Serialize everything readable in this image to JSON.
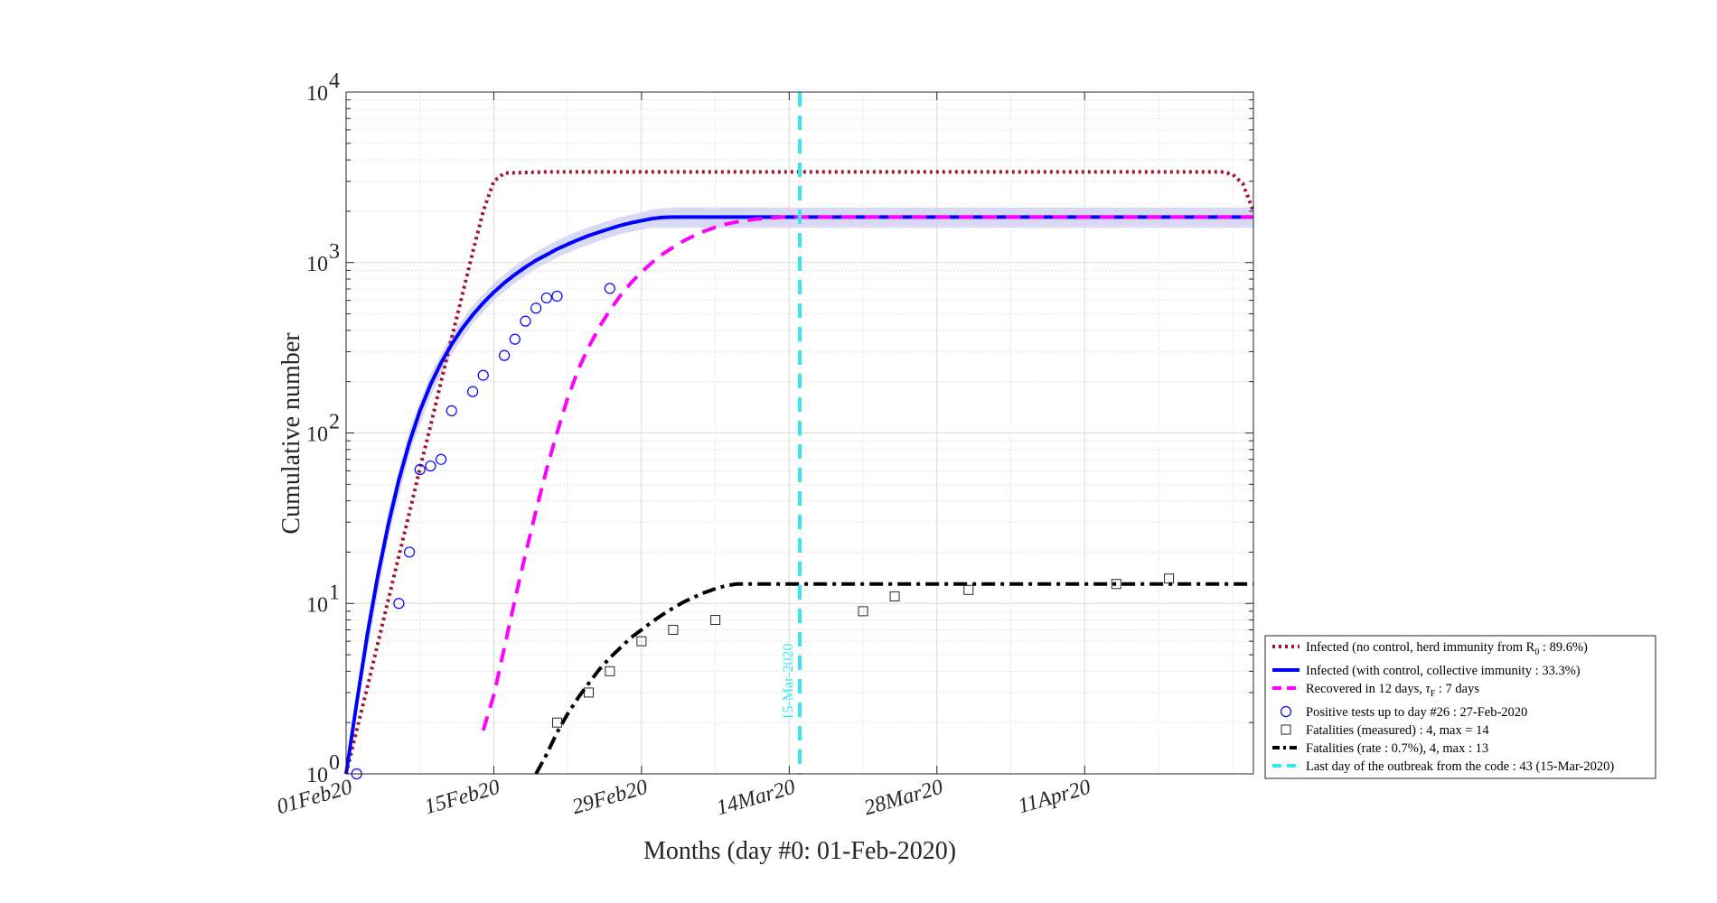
{
  "chart_data": {
    "type": "line",
    "title": "",
    "xlabel": "Months (day #0: 01-Feb-2020)",
    "ylabel": "Cumulative number",
    "yscale": "log",
    "xlim": [
      "2020-02-01",
      "2020-04-27"
    ],
    "ylim": [
      1,
      10000
    ],
    "grid": true,
    "minor_grid": true,
    "legend_position": "lower-right, outside the axes",
    "x_ticks": [
      {
        "date": "2020-02-01",
        "label": "01Feb20"
      },
      {
        "date": "2020-02-15",
        "label": "15Feb20"
      },
      {
        "date": "2020-02-29",
        "label": "29Feb20"
      },
      {
        "date": "2020-03-14",
        "label": "14Mar20"
      },
      {
        "date": "2020-03-28",
        "label": "28Mar20"
      },
      {
        "date": "2020-04-11",
        "label": "11Apr20"
      }
    ],
    "y_ticks": [
      {
        "value": 1,
        "base": "10",
        "exp": "0"
      },
      {
        "value": 10,
        "base": "10",
        "exp": "1"
      },
      {
        "value": 100,
        "base": "10",
        "exp": "2"
      },
      {
        "value": 1000,
        "base": "10",
        "exp": "3"
      },
      {
        "value": 10000,
        "base": "10",
        "exp": "4"
      }
    ],
    "series": [
      {
        "name": "Infected (no control, herd immunity from R",
        "name_sub": "0",
        "name_tail": " : 89.6%)",
        "style": "dotted",
        "color": "#a2142f",
        "points": [
          [
            "2020-02-01",
            1
          ],
          [
            "2020-02-02",
            1.8
          ],
          [
            "2020-02-03",
            3.2
          ],
          [
            "2020-02-04",
            5.8
          ],
          [
            "2020-02-05",
            10.5
          ],
          [
            "2020-02-06",
            19
          ],
          [
            "2020-02-07",
            34
          ],
          [
            "2020-02-08",
            62
          ],
          [
            "2020-02-09",
            110
          ],
          [
            "2020-02-10",
            200
          ],
          [
            "2020-02-11",
            360
          ],
          [
            "2020-02-12",
            640
          ],
          [
            "2020-02-13",
            1150
          ],
          [
            "2020-02-14",
            2000
          ],
          [
            "2020-02-15",
            3000
          ],
          [
            "2020-02-16",
            3350
          ],
          [
            "2020-02-20",
            3400
          ],
          [
            "2020-04-24",
            3400
          ],
          [
            "2020-04-25",
            3300
          ],
          [
            "2020-04-26",
            2900
          ],
          [
            "2020-04-27",
            2000
          ]
        ]
      },
      {
        "name": "Infected (with control, collective immunity : 33.3%)",
        "style": "solid",
        "color": "#0000ff",
        "points": [
          [
            "2020-02-01",
            1
          ],
          [
            "2020-02-02",
            2.6
          ],
          [
            "2020-02-03",
            6.5
          ],
          [
            "2020-02-04",
            14.5
          ],
          [
            "2020-02-05",
            29
          ],
          [
            "2020-02-06",
            53
          ],
          [
            "2020-02-07",
            88
          ],
          [
            "2020-02-08",
            135
          ],
          [
            "2020-02-09",
            192
          ],
          [
            "2020-02-10",
            258
          ],
          [
            "2020-02-11",
            331
          ],
          [
            "2020-02-12",
            410
          ],
          [
            "2020-02-13",
            493
          ],
          [
            "2020-02-14",
            580
          ],
          [
            "2020-02-15",
            670
          ],
          [
            "2020-02-16",
            760
          ],
          [
            "2020-02-17",
            850
          ],
          [
            "2020-02-18",
            940
          ],
          [
            "2020-02-19",
            1030
          ],
          [
            "2020-02-20",
            1110
          ],
          [
            "2020-02-21",
            1200
          ],
          [
            "2020-02-22",
            1280
          ],
          [
            "2020-02-23",
            1360
          ],
          [
            "2020-02-24",
            1440
          ],
          [
            "2020-02-25",
            1510
          ],
          [
            "2020-02-26",
            1580
          ],
          [
            "2020-02-27",
            1650
          ],
          [
            "2020-02-28",
            1710
          ],
          [
            "2020-02-29",
            1760
          ],
          [
            "2020-03-01",
            1810
          ],
          [
            "2020-03-02",
            1840
          ],
          [
            "2020-03-03",
            1850
          ],
          [
            "2020-04-27",
            1850
          ]
        ],
        "band_low": [
          [
            "2020-02-01",
            1
          ],
          [
            "2020-02-03",
            5.2
          ],
          [
            "2020-02-05",
            24
          ],
          [
            "2020-02-07",
            75
          ],
          [
            "2020-02-09",
            165
          ],
          [
            "2020-02-11",
            290
          ],
          [
            "2020-02-13",
            440
          ],
          [
            "2020-02-15",
            600
          ],
          [
            "2020-02-17",
            760
          ],
          [
            "2020-02-19",
            920
          ],
          [
            "2020-02-21",
            1070
          ],
          [
            "2020-02-23",
            1210
          ],
          [
            "2020-02-25",
            1340
          ],
          [
            "2020-02-27",
            1470
          ],
          [
            "2020-02-29",
            1560
          ],
          [
            "2020-03-01",
            1600
          ],
          [
            "2020-03-03",
            1600
          ],
          [
            "2020-04-27",
            1600
          ]
        ],
        "band_high": [
          [
            "2020-02-01",
            1
          ],
          [
            "2020-02-03",
            7.8
          ],
          [
            "2020-02-05",
            35
          ],
          [
            "2020-02-07",
            104
          ],
          [
            "2020-02-09",
            222
          ],
          [
            "2020-02-11",
            378
          ],
          [
            "2020-02-13",
            560
          ],
          [
            "2020-02-15",
            755
          ],
          [
            "2020-02-17",
            955
          ],
          [
            "2020-02-19",
            1155
          ],
          [
            "2020-02-21",
            1350
          ],
          [
            "2020-02-23",
            1530
          ],
          [
            "2020-02-25",
            1690
          ],
          [
            "2020-02-27",
            1850
          ],
          [
            "2020-02-29",
            1970
          ],
          [
            "2020-03-01",
            2050
          ],
          [
            "2020-03-03",
            2100
          ],
          [
            "2020-04-27",
            2100
          ]
        ]
      },
      {
        "name": "Recovered in 12 days, ",
        "name_tau": "τ",
        "name_sub": "F",
        "name_tail": " : 7 days",
        "style": "dashed",
        "color": "#ff00ff",
        "points": [
          [
            "2020-02-14",
            1.8
          ],
          [
            "2020-02-15",
            2.9
          ],
          [
            "2020-02-16",
            5.5
          ],
          [
            "2020-02-17",
            10.5
          ],
          [
            "2020-02-18",
            19.5
          ],
          [
            "2020-02-19",
            35
          ],
          [
            "2020-02-20",
            61
          ],
          [
            "2020-02-21",
            101
          ],
          [
            "2020-02-22",
            160
          ],
          [
            "2020-02-23",
            235
          ],
          [
            "2020-02-24",
            320
          ],
          [
            "2020-02-25",
            418
          ],
          [
            "2020-02-26",
            525
          ],
          [
            "2020-02-27",
            640
          ],
          [
            "2020-02-28",
            760
          ],
          [
            "2020-02-29",
            880
          ],
          [
            "2020-03-01",
            1000
          ],
          [
            "2020-03-02",
            1120
          ],
          [
            "2020-03-03",
            1230
          ],
          [
            "2020-03-04",
            1340
          ],
          [
            "2020-03-05",
            1440
          ],
          [
            "2020-03-06",
            1530
          ],
          [
            "2020-03-07",
            1610
          ],
          [
            "2020-03-08",
            1680
          ],
          [
            "2020-03-09",
            1730
          ],
          [
            "2020-03-10",
            1770
          ],
          [
            "2020-03-11",
            1800
          ],
          [
            "2020-03-12",
            1820
          ],
          [
            "2020-03-13",
            1840
          ],
          [
            "2020-03-14",
            1850
          ],
          [
            "2020-04-27",
            1850
          ]
        ]
      },
      {
        "name": "Positive tests up to day #26 : 27-Feb-2020",
        "style": "circle-markers",
        "color": "#0000ff",
        "points": [
          [
            "2020-02-02",
            1
          ],
          [
            "2020-02-06",
            10
          ],
          [
            "2020-02-07",
            20
          ],
          [
            "2020-02-08",
            61
          ],
          [
            "2020-02-09",
            64
          ],
          [
            "2020-02-10",
            70
          ],
          [
            "2020-02-11",
            135
          ],
          [
            "2020-02-13",
            175
          ],
          [
            "2020-02-14",
            218
          ],
          [
            "2020-02-16",
            285
          ],
          [
            "2020-02-17",
            355
          ],
          [
            "2020-02-18",
            453
          ],
          [
            "2020-02-19",
            540
          ],
          [
            "2020-02-20",
            620
          ],
          [
            "2020-02-21",
            635
          ],
          [
            "2020-02-26",
            705
          ]
        ]
      },
      {
        "name": "Fatalities (measured) : 4, max = 14",
        "style": "square-markers",
        "color": "#000000",
        "points": [
          [
            "2020-02-21",
            2
          ],
          [
            "2020-02-24",
            3
          ],
          [
            "2020-02-26",
            4
          ],
          [
            "2020-02-29",
            6
          ],
          [
            "2020-03-03",
            7
          ],
          [
            "2020-03-07",
            8
          ],
          [
            "2020-03-21",
            9
          ],
          [
            "2020-03-24",
            11
          ],
          [
            "2020-03-31",
            12
          ],
          [
            "2020-04-14",
            13
          ],
          [
            "2020-04-19",
            14
          ]
        ]
      },
      {
        "name": "Fatalities (rate : 0.7%), 4, max : 13",
        "style": "dashdot",
        "color": "#000000",
        "points": [
          [
            "2020-02-19",
            1
          ],
          [
            "2020-02-20",
            1.3
          ],
          [
            "2020-02-21",
            1.75
          ],
          [
            "2020-02-22",
            2.25
          ],
          [
            "2020-02-23",
            2.8
          ],
          [
            "2020-02-24",
            3.4
          ],
          [
            "2020-02-25",
            4.1
          ],
          [
            "2020-02-26",
            4.8
          ],
          [
            "2020-02-27",
            5.5
          ],
          [
            "2020-02-28",
            6.3
          ],
          [
            "2020-02-29",
            7.0
          ],
          [
            "2020-03-01",
            7.8
          ],
          [
            "2020-03-02",
            8.6
          ],
          [
            "2020-03-03",
            9.4
          ],
          [
            "2020-03-04",
            10.2
          ],
          [
            "2020-03-05",
            10.9
          ],
          [
            "2020-03-06",
            11.6
          ],
          [
            "2020-03-07",
            12.2
          ],
          [
            "2020-03-08",
            12.7
          ],
          [
            "2020-03-09",
            13
          ],
          [
            "2020-04-27",
            13
          ]
        ]
      },
      {
        "name": "Last day of the outbreak from the code : 43 (15-Mar-2020)",
        "style": "vertical-dashed",
        "color": "#33e8f0",
        "x": "2020-03-15",
        "label": "15-Mar-2020"
      }
    ]
  }
}
